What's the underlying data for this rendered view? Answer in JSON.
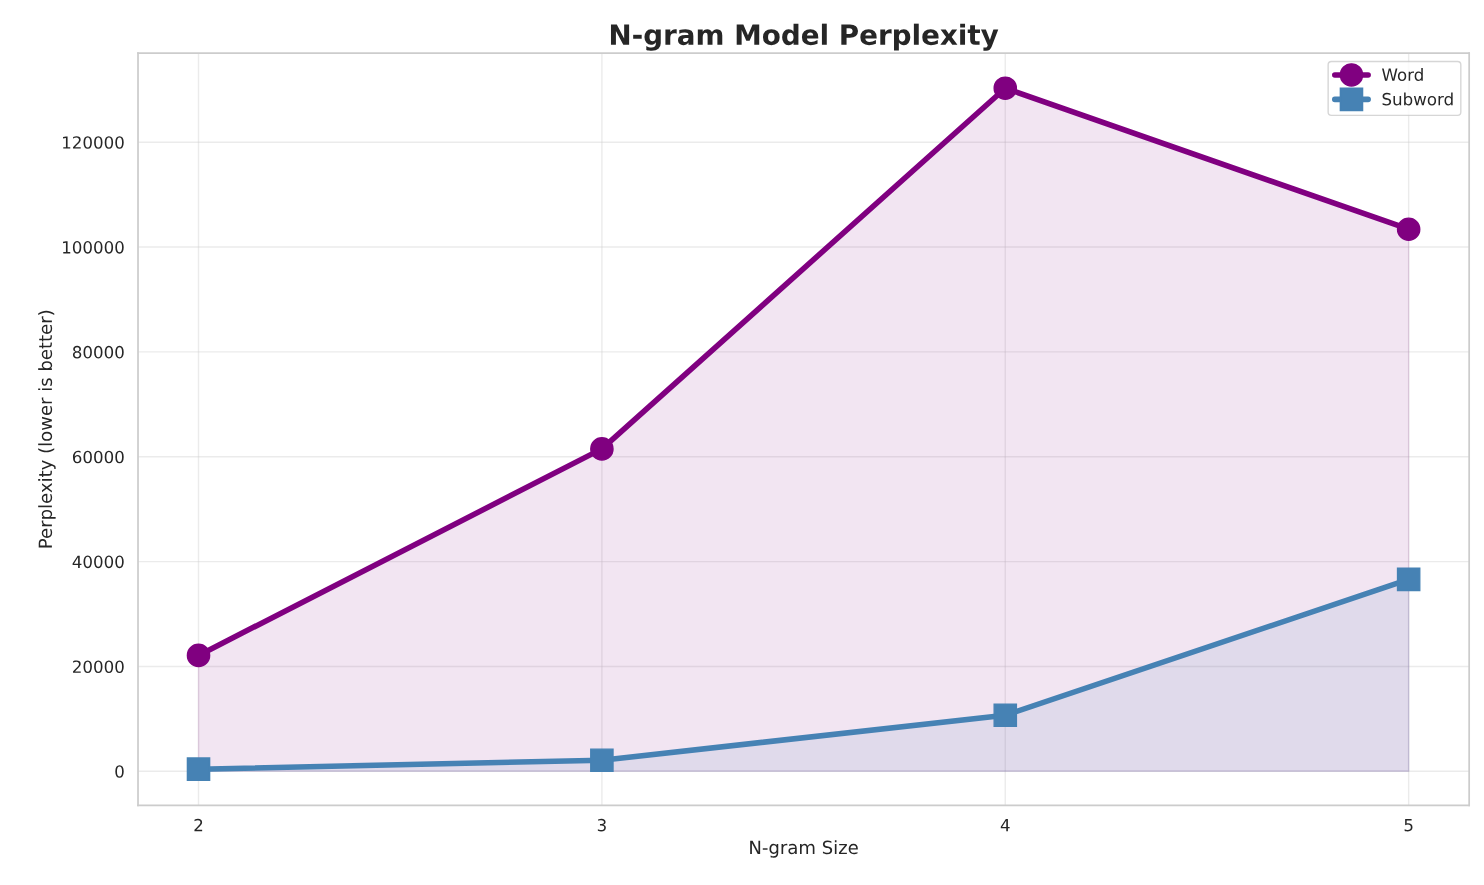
{
  "chart_data": {
    "type": "area",
    "title": "N-gram Model Perplexity",
    "xlabel": "N-gram Size",
    "ylabel": "Perplexity (lower is better)",
    "x": [
      2,
      3,
      4,
      5
    ],
    "xlim": [
      1.85,
      5.15
    ],
    "xticks": [
      2,
      3,
      4,
      5
    ],
    "ylim": [
      -6500,
      137000
    ],
    "yticks": [
      0,
      20000,
      40000,
      60000,
      80000,
      100000,
      120000
    ],
    "grid": true,
    "legend": "top right",
    "line_style": "solid",
    "series": [
      {
        "name": "Word",
        "color": "#800080",
        "marker": "circle",
        "values": [
          22100,
          61500,
          130300,
          103400
        ]
      },
      {
        "name": "Subword",
        "color": "#4682b4",
        "marker": "square",
        "values": [
          400,
          2100,
          10700,
          36600
        ]
      }
    ]
  }
}
